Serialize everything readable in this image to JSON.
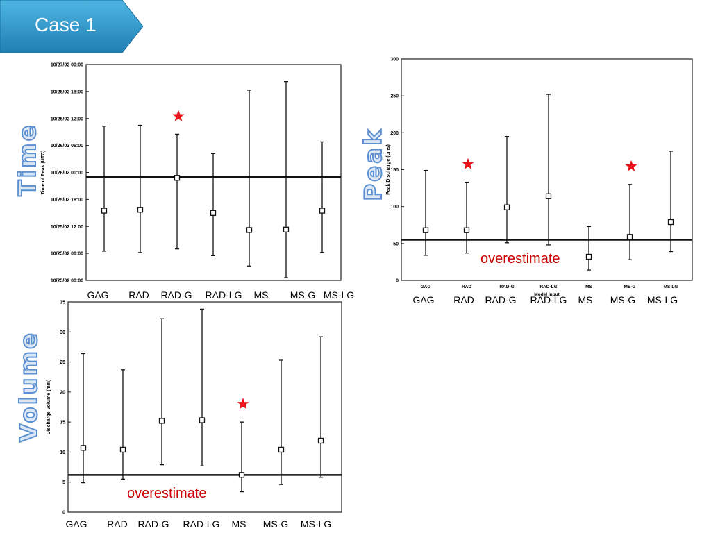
{
  "header": {
    "title": "Case 1",
    "banner_color": "#3399cc"
  },
  "side_labels": {
    "time": "Time",
    "peak": "Peak",
    "volume": "Volume"
  },
  "chart_data": [
    {
      "id": "time",
      "type": "errorbar",
      "ylabel": "Time of Peak (UTC)",
      "ytick_labels": [
        "10/25/02 00:00",
        "10/25/02 06:00",
        "10/25/02 12:00",
        "10/25/02 18:00",
        "10/26/02 00:00",
        "10/26/02 06:00",
        "10/26/02 12:00",
        "10/26/02 18:00",
        "10/27/02 00:00"
      ],
      "ylim_hours": [
        0,
        48
      ],
      "categories": [
        "GAG",
        "RAD",
        "RAD-G",
        "RAD-LG",
        "MS",
        "MS-G",
        "MS-LG"
      ],
      "center": [
        15.5,
        15.7,
        22.8,
        15.0,
        11.2,
        11.3,
        15.5
      ],
      "low": [
        6.5,
        6.2,
        7.0,
        5.5,
        3.2,
        0.6,
        6.2
      ],
      "high": [
        34.3,
        34.5,
        32.5,
        28.2,
        42.3,
        44.2,
        30.8
      ],
      "observed": 23.0,
      "starred": [
        "RAD-G"
      ],
      "annotation": ""
    },
    {
      "id": "peak",
      "type": "errorbar",
      "ylabel": "Peak Discharge (cms)",
      "xlabel": "Model Input",
      "yticks": [
        0,
        50,
        100,
        150,
        200,
        250,
        300
      ],
      "ylim": [
        0,
        300
      ],
      "categories": [
        "GAG",
        "RAD",
        "RAD-G",
        "RAD-LG",
        "MS",
        "MS-G",
        "MS-LG"
      ],
      "center": [
        68,
        68,
        99,
        114,
        32,
        59,
        79
      ],
      "low": [
        34,
        37,
        51,
        48,
        14,
        28,
        39
      ],
      "high": [
        149,
        133,
        195,
        252,
        73,
        130,
        175
      ],
      "observed": 55,
      "starred": [
        "RAD",
        "MS-G"
      ],
      "annotation": "overestimate"
    },
    {
      "id": "volume",
      "type": "errorbar",
      "ylabel": "Discharge Volume (mm)",
      "yticks": [
        0,
        5,
        10,
        15,
        20,
        25,
        30,
        35
      ],
      "ylim": [
        0,
        35
      ],
      "categories": [
        "GAG",
        "RAD",
        "RAD-G",
        "RAD-LG",
        "MS",
        "MS-G",
        "MS-LG"
      ],
      "center": [
        10.7,
        10.4,
        15.2,
        15.3,
        6.2,
        10.4,
        11.9
      ],
      "low": [
        4.9,
        5.5,
        7.9,
        7.7,
        3.4,
        4.6,
        5.8
      ],
      "high": [
        26.4,
        23.7,
        32.2,
        33.8,
        15.0,
        25.3,
        29.2
      ],
      "observed": 6.2,
      "starred": [
        "MS"
      ],
      "annotation": "overestimate"
    }
  ],
  "star_color": "#e8141c"
}
